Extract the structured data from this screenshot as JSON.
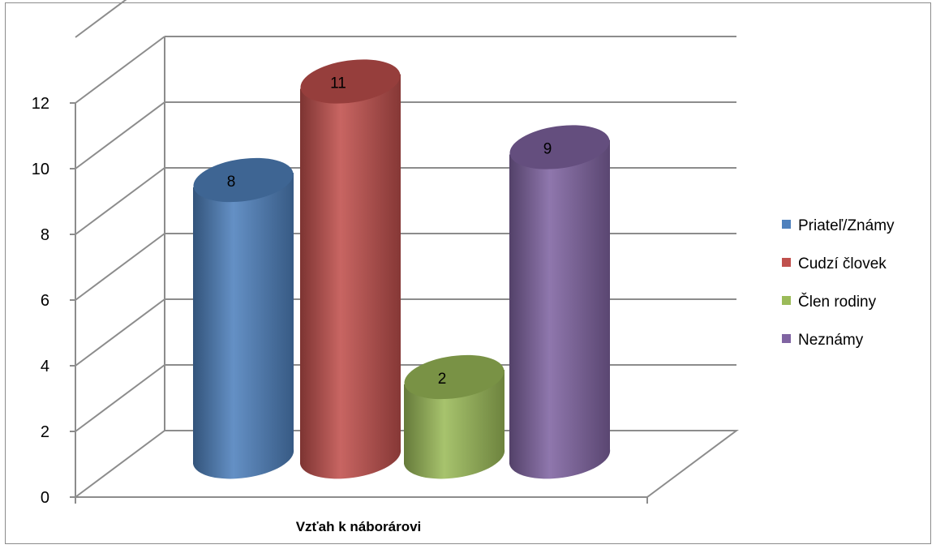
{
  "chart_data": {
    "type": "bar",
    "variant": "3d-cylinder",
    "title": "",
    "xlabel": "Vzťah k náborárovi",
    "ylabel": "",
    "ylim": [
      0,
      12
    ],
    "yticks": [
      "0",
      "2",
      "4",
      "6",
      "8",
      "10",
      "12"
    ],
    "grid": true,
    "legend_position": "right",
    "series": [
      {
        "name": "Priateľ/Známy",
        "values": [
          8
        ],
        "color": "#4f81bd"
      },
      {
        "name": "Cudzí človek",
        "values": [
          11
        ],
        "color": "#c0504d"
      },
      {
        "name": "Člen rodiny",
        "values": [
          2
        ],
        "color": "#9bbb59"
      },
      {
        "name": "Neznámy",
        "values": [
          9
        ],
        "color": "#8064a2"
      }
    ],
    "data_labels": [
      "8",
      "11",
      "2",
      "9"
    ]
  }
}
